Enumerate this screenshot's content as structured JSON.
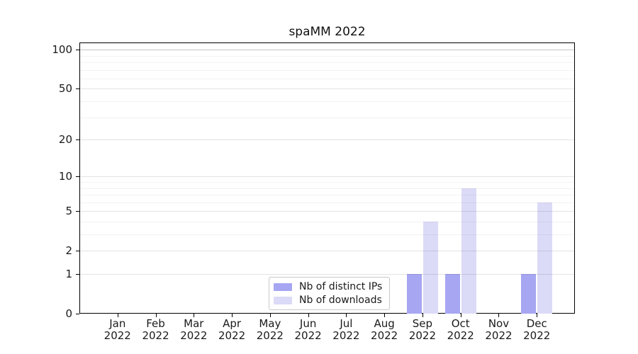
{
  "title": "spaMM 2022",
  "chart_data": {
    "type": "bar",
    "title": "spaMM 2022",
    "x_months": [
      "Jan",
      "Feb",
      "Mar",
      "Apr",
      "May",
      "Jun",
      "Jul",
      "Aug",
      "Sep",
      "Oct",
      "Nov",
      "Dec"
    ],
    "x_year": "2022",
    "series": [
      {
        "name": "Nb of distinct IPs",
        "color": "#a6a6f2",
        "values": [
          0,
          0,
          0,
          0,
          0,
          0,
          0,
          0,
          1,
          1,
          0,
          1
        ]
      },
      {
        "name": "Nb of downloads",
        "color": "#dbdbf7",
        "values": [
          0,
          0,
          0,
          0,
          0,
          0,
          0,
          0,
          4,
          8,
          0,
          6
        ]
      }
    ],
    "y_scale": "log1p",
    "y_tick_values": [
      0,
      1,
      2,
      5,
      10,
      20,
      50,
      100
    ],
    "y_minor_gridlines": [
      3,
      4,
      6,
      7,
      8,
      9,
      30,
      40,
      60,
      70,
      80,
      90
    ],
    "ylim": [
      0,
      113
    ],
    "grid": true,
    "legend_position": "inside-lower-center",
    "axis_color": "#000000",
    "minor_grid_color": "rgba(0,0,0,0.05)",
    "major_grid_color": "rgba(0,0,0,0.11)",
    "top_grid_color": "rgba(0,0,0,0.22)"
  }
}
